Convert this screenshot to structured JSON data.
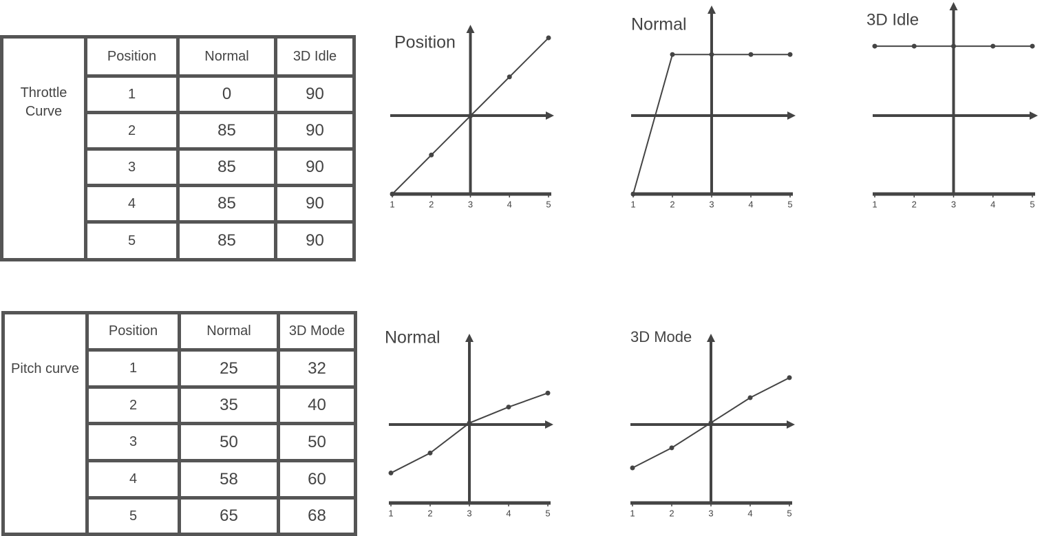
{
  "tables": [
    {
      "label": "Throttle Curve",
      "header": [
        "Position",
        "Normal",
        "3D Idle"
      ],
      "rows": [
        [
          1,
          0,
          90
        ],
        [
          2,
          85,
          90
        ],
        [
          3,
          85,
          90
        ],
        [
          4,
          85,
          90
        ],
        [
          5,
          85,
          90
        ]
      ]
    },
    {
      "label": "Pitch curve",
      "header": [
        "Position",
        "Normal",
        "3D Mode"
      ],
      "rows": [
        [
          1,
          25,
          32
        ],
        [
          2,
          35,
          40
        ],
        [
          3,
          50,
          50
        ],
        [
          4,
          58,
          60
        ],
        [
          5,
          65,
          68
        ]
      ]
    }
  ],
  "chart_data": [
    {
      "type": "line",
      "title": "Position",
      "x": [
        1,
        2,
        3,
        4,
        5
      ],
      "values": [
        1,
        2,
        3,
        4,
        5
      ],
      "xlim": [
        1,
        5
      ],
      "xticks": [
        1,
        2,
        3,
        4,
        5
      ],
      "ylim": [
        1,
        5.3
      ],
      "color": "#444444"
    },
    {
      "type": "line",
      "title": "Normal",
      "x": [
        1,
        2,
        3,
        4,
        5
      ],
      "values": [
        0,
        85,
        85,
        85,
        85
      ],
      "xlim": [
        1,
        5
      ],
      "xticks": [
        1,
        2,
        3,
        4,
        5
      ],
      "ylim": [
        0,
        114
      ],
      "color": "#444444"
    },
    {
      "type": "line",
      "title": "3D Idle",
      "x": [
        1,
        2,
        3,
        4,
        5
      ],
      "values": [
        90,
        90,
        90,
        90,
        90
      ],
      "xlim": [
        1,
        5
      ],
      "xticks": [
        1,
        2,
        3,
        4,
        5
      ],
      "ylim": [
        0,
        116
      ],
      "color": "#444444"
    },
    {
      "type": "line",
      "title": "Normal",
      "x": [
        1,
        2,
        3,
        4,
        5
      ],
      "values": [
        25,
        35,
        50,
        58,
        65
      ],
      "xlim": [
        1,
        5
      ],
      "xticks": [
        1,
        2,
        3,
        4,
        5
      ],
      "ylim": [
        10,
        94
      ],
      "color": "#444444"
    },
    {
      "type": "line",
      "title": "3D Mode",
      "x": [
        1,
        2,
        3,
        4,
        5
      ],
      "values": [
        32,
        40,
        50,
        60,
        68
      ],
      "xlim": [
        1,
        5
      ],
      "xticks": [
        1,
        2,
        3,
        4,
        5
      ],
      "ylim": [
        18,
        85
      ],
      "color": "#444444"
    }
  ]
}
